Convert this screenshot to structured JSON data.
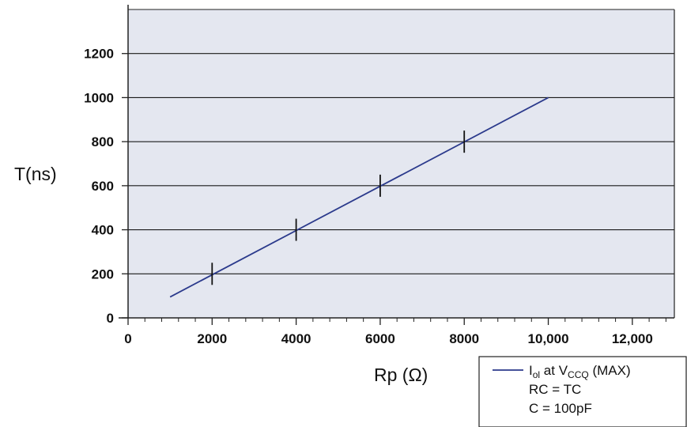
{
  "chart_data": {
    "type": "line",
    "xlabel": "Rp (Ω)",
    "ylabel": "T(ns)",
    "xlim": [
      0,
      13000
    ],
    "ylim": [
      0,
      1400
    ],
    "x_ticks": [
      0,
      2000,
      4000,
      6000,
      8000,
      10000,
      12000
    ],
    "x_tick_labels": [
      "0",
      "2000",
      "4000",
      "6000",
      "8000",
      "10,000",
      "12,000"
    ],
    "y_ticks": [
      0,
      200,
      400,
      600,
      800,
      1000,
      1200
    ],
    "y_tick_labels": [
      "0",
      "200",
      "400",
      "600",
      "800",
      "1000",
      "1200"
    ],
    "grid": "horizontal",
    "series": [
      {
        "x": [
          1000,
          10000
        ],
        "y": [
          95,
          1000
        ],
        "color": "#2b3a8c"
      }
    ],
    "markers": {
      "x": [
        2000,
        4000,
        6000,
        8000
      ],
      "y": [
        200,
        400,
        600,
        800
      ]
    },
    "legend": {
      "placement": "bottom-right",
      "line1_main": "I",
      "line1_sub": "ol",
      "line1_mid": " at V",
      "line1_sub2": "CCQ",
      "line1_end": " (MAX)",
      "line2": "RC = TC",
      "line3": "C = 100pF"
    },
    "colors": {
      "plot_background": "#e4e7f0",
      "line": "#2b3a8c",
      "axis": "#222222"
    }
  }
}
